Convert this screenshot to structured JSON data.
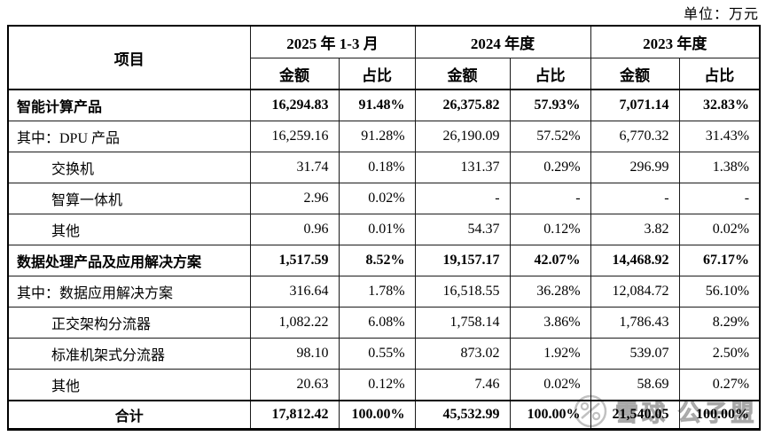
{
  "unit_label": "单位：万元",
  "table": {
    "item_header": "项目",
    "col_groups": [
      {
        "label": "2025 年 1-3 月",
        "sub": [
          "金额",
          "占比"
        ]
      },
      {
        "label": "2024 年度",
        "sub": [
          "金额",
          "占比"
        ]
      },
      {
        "label": "2023 年度",
        "sub": [
          "金额",
          "占比"
        ]
      }
    ],
    "rows": [
      {
        "label": "智能计算产品",
        "bold": true,
        "indent": 0,
        "values": [
          "16,294.83",
          "91.48%",
          "26,375.82",
          "57.93%",
          "7,071.14",
          "32.83%"
        ]
      },
      {
        "label": "其中：DPU 产品",
        "bold": false,
        "indent": 0,
        "values": [
          "16,259.16",
          "91.28%",
          "26,190.09",
          "57.52%",
          "6,770.32",
          "31.43%"
        ]
      },
      {
        "label": "交换机",
        "bold": false,
        "indent": 1,
        "values": [
          "31.74",
          "0.18%",
          "131.37",
          "0.29%",
          "296.99",
          "1.38%"
        ]
      },
      {
        "label": "智算一体机",
        "bold": false,
        "indent": 1,
        "values": [
          "2.96",
          "0.02%",
          "-",
          "-",
          "-",
          "-"
        ]
      },
      {
        "label": "其他",
        "bold": false,
        "indent": 1,
        "values": [
          "0.96",
          "0.01%",
          "54.37",
          "0.12%",
          "3.82",
          "0.02%"
        ]
      },
      {
        "label": "数据处理产品及应用解决方案",
        "bold": true,
        "indent": 0,
        "values": [
          "1,517.59",
          "8.52%",
          "19,157.17",
          "42.07%",
          "14,468.92",
          "67.17%"
        ]
      },
      {
        "label": "其中：数据应用解决方案",
        "bold": false,
        "indent": 0,
        "values": [
          "316.64",
          "1.78%",
          "16,518.55",
          "36.28%",
          "12,084.72",
          "56.10%"
        ]
      },
      {
        "label": "正交架构分流器",
        "bold": false,
        "indent": 1,
        "values": [
          "1,082.22",
          "6.08%",
          "1,758.14",
          "3.86%",
          "1,786.43",
          "8.29%"
        ]
      },
      {
        "label": "标准机架式分流器",
        "bold": false,
        "indent": 1,
        "values": [
          "98.10",
          "0.55%",
          "873.02",
          "1.92%",
          "539.07",
          "2.50%"
        ]
      },
      {
        "label": "其他",
        "bold": false,
        "indent": 1,
        "values": [
          "20.63",
          "0.12%",
          "7.46",
          "0.02%",
          "58.69",
          "0.27%"
        ]
      },
      {
        "label": "合计",
        "bold": true,
        "indent": 0,
        "align": "center",
        "total": true,
        "values": [
          "17,812.42",
          "100.00%",
          "45,532.99",
          "100.00%",
          "21,540.05",
          "100.00%"
        ]
      }
    ]
  },
  "watermark": {
    "logo": "xueqiu-snowball-logo",
    "text": "雪球 公子盟",
    "color": "#b9b9b9"
  },
  "colors": {
    "border": "#000000",
    "text": "#000000",
    "background": "#ffffff"
  }
}
